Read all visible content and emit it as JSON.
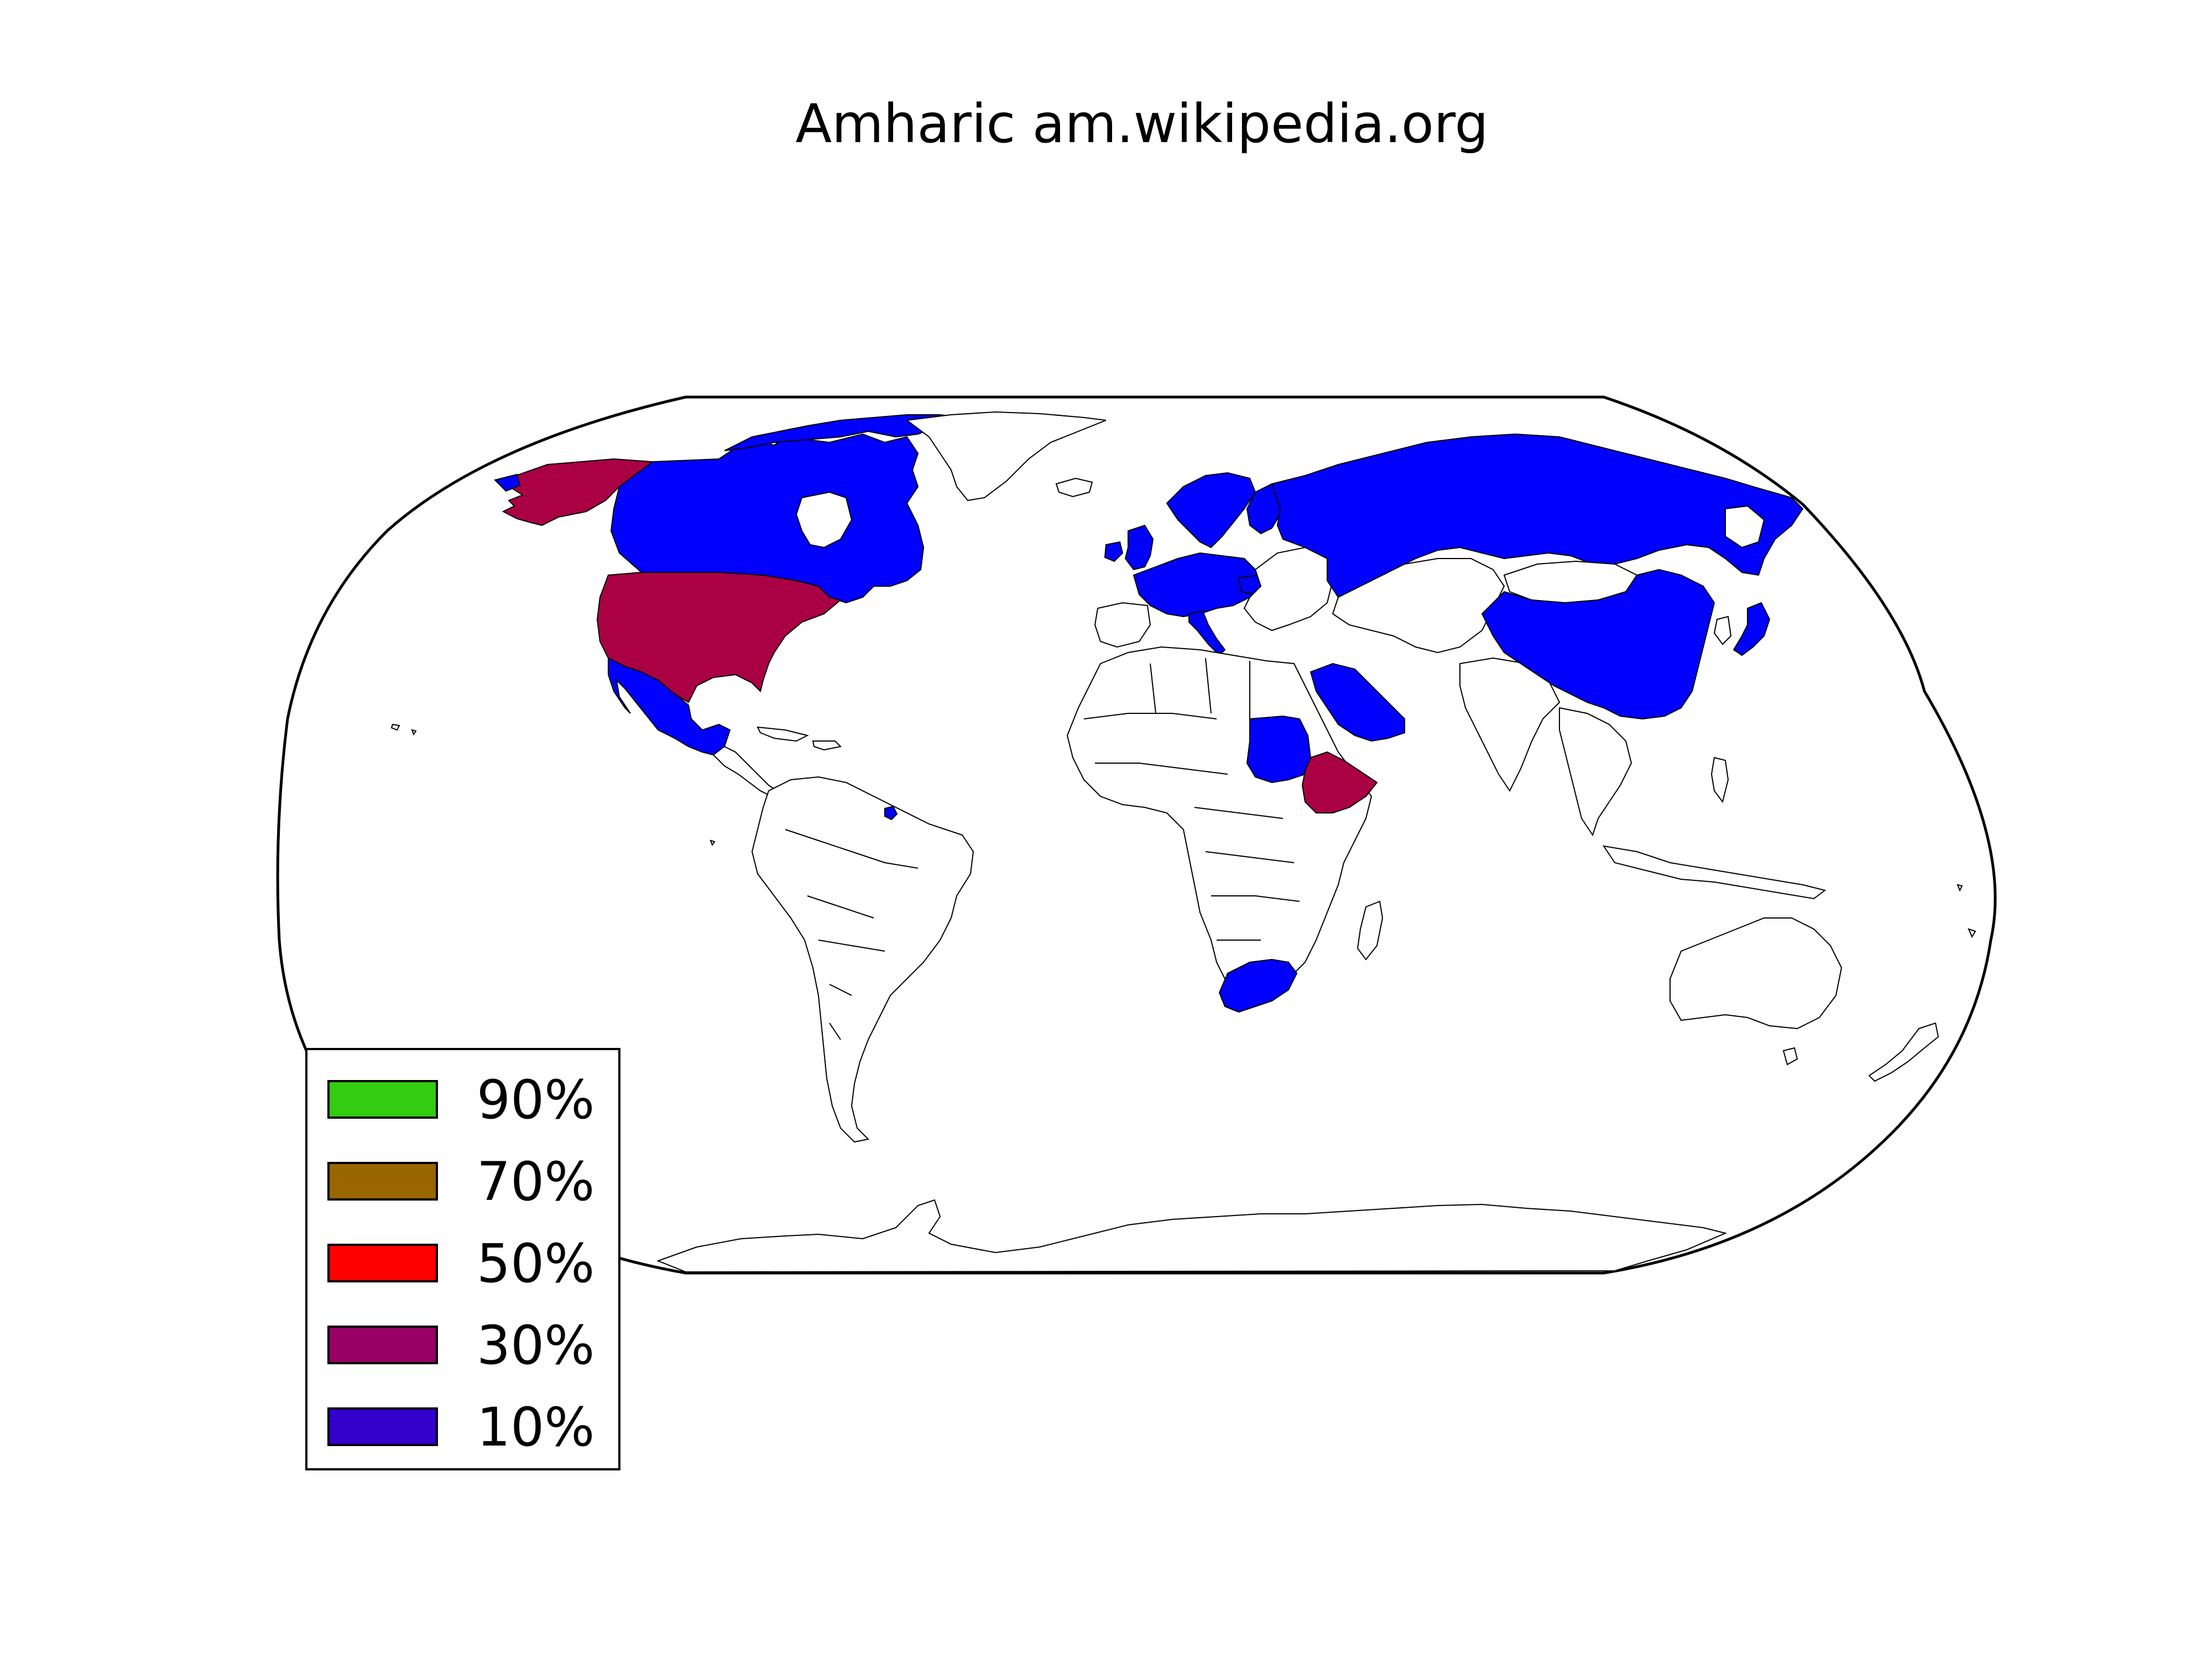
{
  "title": "Amharic am.wikipedia.org",
  "map": {
    "projection": "robinson",
    "background_fill": "#ffffff",
    "border_color": "#000000",
    "highlighted_countries": [
      {
        "name": "United States",
        "category": "30%"
      },
      {
        "name": "Alaska (United States)",
        "category": "30%"
      },
      {
        "name": "Ethiopia",
        "category": "30%"
      },
      {
        "name": "Canada",
        "category": "10%"
      },
      {
        "name": "Mexico",
        "category": "10%"
      },
      {
        "name": "Russia",
        "category": "10%"
      },
      {
        "name": "China",
        "category": "10%"
      },
      {
        "name": "Japan",
        "category": "10%"
      },
      {
        "name": "Saudi Arabia",
        "category": "10%"
      },
      {
        "name": "Sudan",
        "category": "10%"
      },
      {
        "name": "South Africa",
        "category": "10%"
      },
      {
        "name": "Norway",
        "category": "10%"
      },
      {
        "name": "Sweden",
        "category": "10%"
      },
      {
        "name": "Finland",
        "category": "10%"
      },
      {
        "name": "United Kingdom",
        "category": "10%"
      },
      {
        "name": "Ireland",
        "category": "10%"
      },
      {
        "name": "Germany",
        "category": "10%"
      },
      {
        "name": "France",
        "category": "10%"
      },
      {
        "name": "Netherlands",
        "category": "10%"
      },
      {
        "name": "Belgium",
        "category": "10%"
      },
      {
        "name": "Switzerland",
        "category": "10%"
      },
      {
        "name": "Italy",
        "category": "10%"
      },
      {
        "name": "Poland",
        "category": "10%"
      },
      {
        "name": "Hungary",
        "category": "10%"
      },
      {
        "name": "Denmark",
        "category": "10%"
      },
      {
        "name": "Suriname",
        "category": "10%"
      }
    ]
  },
  "legend": {
    "placement": "lower-left",
    "items": [
      {
        "label": "90%",
        "color": "#33cc11"
      },
      {
        "label": "70%",
        "color": "#996600"
      },
      {
        "label": "50%",
        "color": "#ff0000"
      },
      {
        "label": "30%",
        "color": "#990066"
      },
      {
        "label": "10%",
        "color": "#3300cc"
      }
    ]
  },
  "fill_colors": {
    "30%": "#aa0044",
    "10%": "#0000ff"
  }
}
